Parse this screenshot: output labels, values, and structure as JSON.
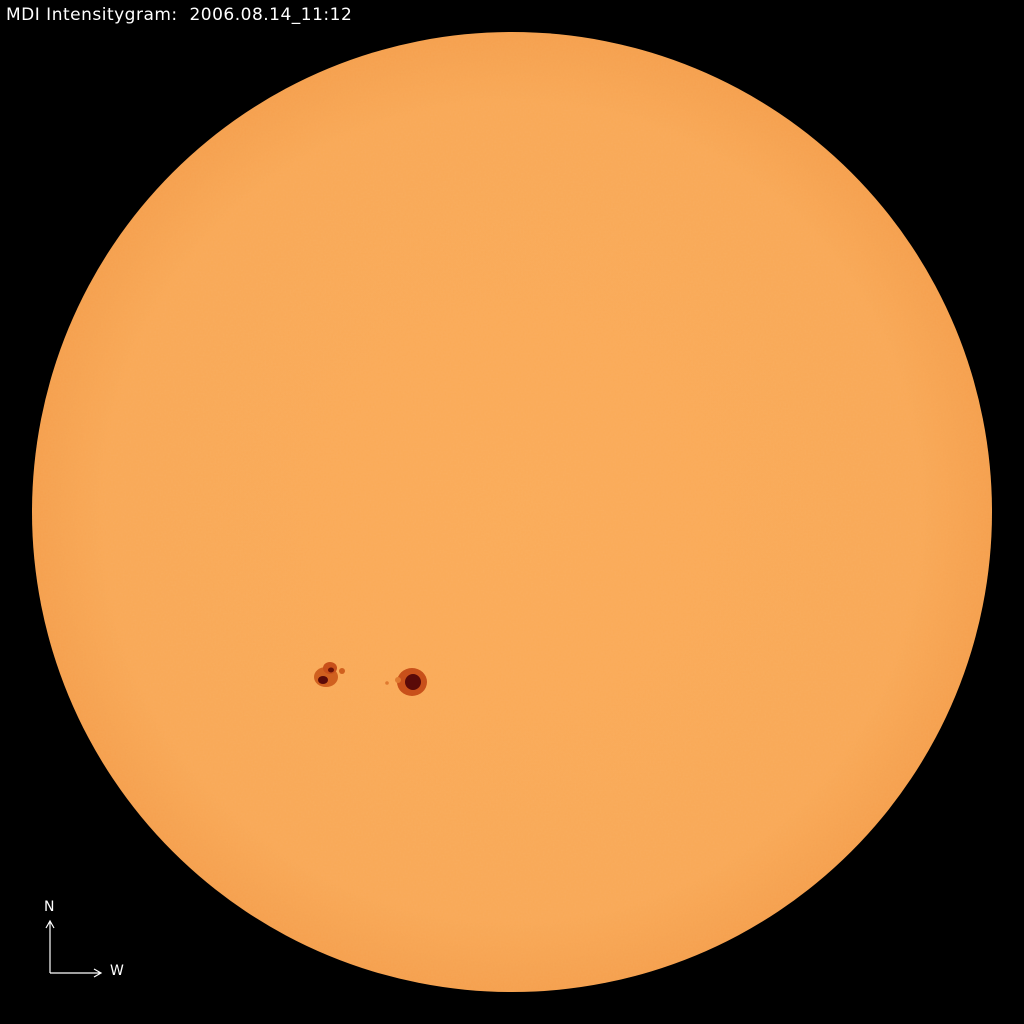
{
  "title": "MDI Intensitygram:  2006.08.14_11:12",
  "compass": {
    "north": "N",
    "west": "W"
  },
  "colors": {
    "background": "#000000",
    "disk": "#f9a856",
    "spot_penumbra": "#c8501a",
    "spot_umbra": "#5a0a08",
    "text": "#ffffff"
  }
}
